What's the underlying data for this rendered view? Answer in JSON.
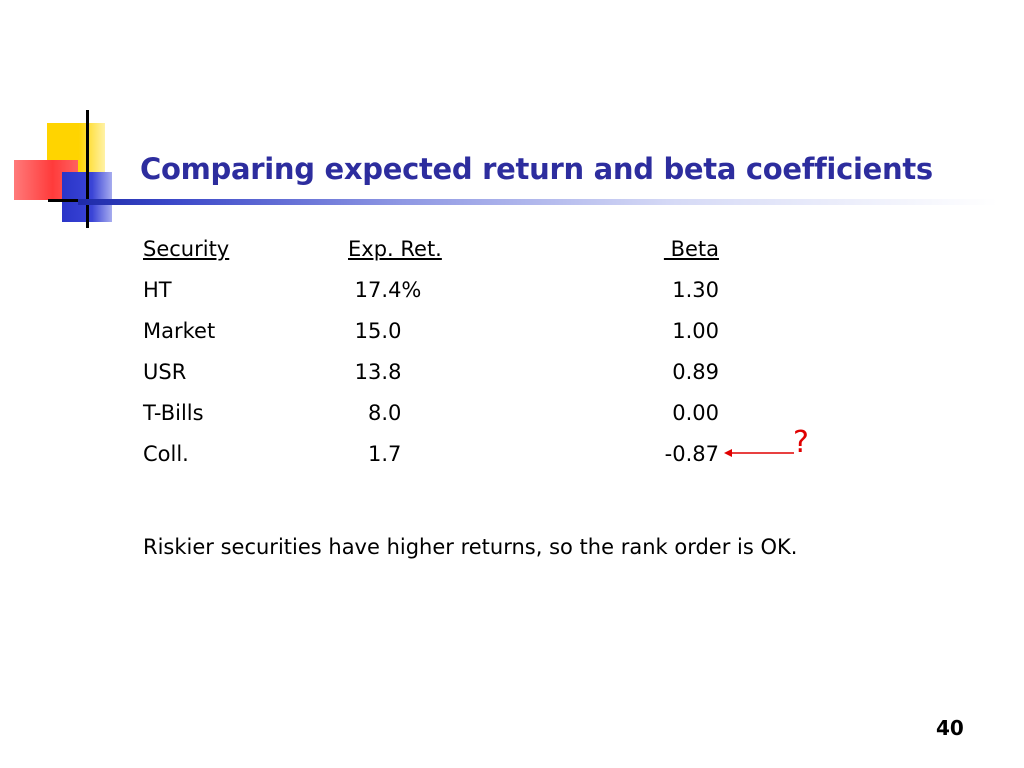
{
  "slide": {
    "title": "Comparing expected return and beta coefficients",
    "page_number": "40",
    "title_color": "#2d2d9e",
    "accent_colors": {
      "yellow": "#ffd400",
      "red": "#ff3b3b",
      "blue": "#2a35c8",
      "annotation": "#e00000"
    }
  },
  "table": {
    "headers": {
      "security": "Security",
      "exp_ret": "Exp. Ret.",
      "beta": " Beta"
    },
    "rows": [
      {
        "security": "HT",
        "exp_ret": " 17.4%",
        "beta": "1.30"
      },
      {
        "security": "Market",
        "exp_ret": " 15.0",
        "beta": "1.00"
      },
      {
        "security": "USR",
        "exp_ret": " 13.8",
        "beta": "0.89"
      },
      {
        "security": "T-Bills",
        "exp_ret": "   8.0",
        "beta": "0.00"
      },
      {
        "security": "Coll.",
        "exp_ret": "   1.7",
        "beta": "-0.87"
      }
    ]
  },
  "annotation": {
    "symbol": "?",
    "icon": "left-arrow-icon"
  },
  "note": "Riskier securities have higher returns, so the rank order is OK."
}
